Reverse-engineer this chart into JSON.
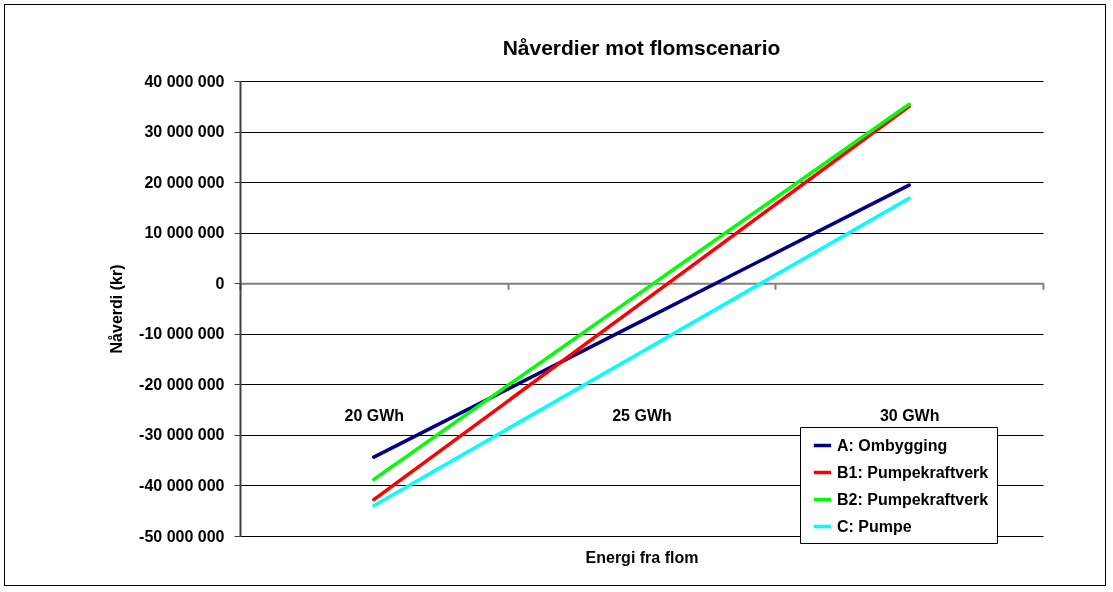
{
  "chart_data": {
    "type": "line",
    "title": "Nåverdier mot flomscenario",
    "xlabel": "Energi fra flom",
    "ylabel": "Nåverdi (kr)",
    "categories": [
      "20 GWh",
      "25 GWh",
      "30 GWh"
    ],
    "series": [
      {
        "name": "A: Ombygging",
        "color": "#000080",
        "values": [
          -34400000,
          -7500000,
          19400000
        ]
      },
      {
        "name": "B1: Pumpekraftverk",
        "color": "#ff0000",
        "values": [
          -42800000,
          -3900000,
          35000000
        ]
      },
      {
        "name": "B2: Pumpekraftverk",
        "color": "#00ff00",
        "values": [
          -38800000,
          -1700000,
          35400000
        ]
      },
      {
        "name": "C: Pumpe",
        "color": "#00ffff",
        "values": [
          -44000000,
          -13600000,
          16800000
        ]
      }
    ],
    "ylim": [
      -50000000,
      40000000
    ],
    "yticks": [
      {
        "value": -50000000,
        "label": "-50 000 000"
      },
      {
        "value": -40000000,
        "label": "-40 000 000"
      },
      {
        "value": -30000000,
        "label": "-30 000 000"
      },
      {
        "value": -20000000,
        "label": "-20 000 000"
      },
      {
        "value": -10000000,
        "label": "-10 000 000"
      },
      {
        "value": 0,
        "label": "0"
      },
      {
        "value": 10000000,
        "label": "10 000 000"
      },
      {
        "value": 20000000,
        "label": "20 000 000"
      },
      {
        "value": 30000000,
        "label": "30 000 000"
      },
      {
        "value": 40000000,
        "label": "40 000 000"
      }
    ],
    "grid": "y",
    "legend": "bottom right",
    "marker": "none",
    "line_style": "solid"
  }
}
